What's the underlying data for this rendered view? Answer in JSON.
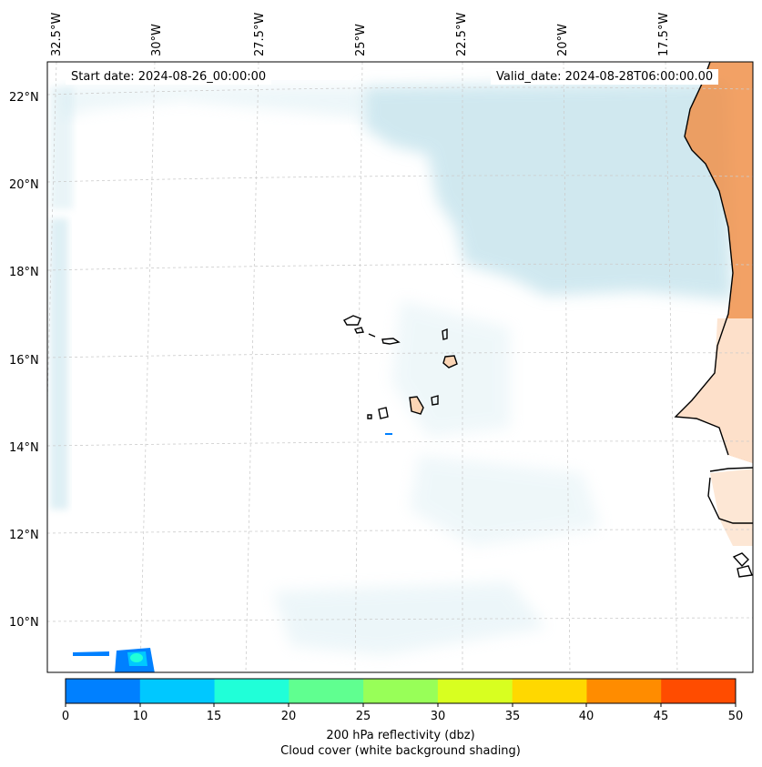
{
  "map": {
    "start_date": "Start date: 2024-08-26_00:00:00",
    "valid_date": "Valid_date: 2024-08-28T06:00:00.00",
    "lon_labels": [
      "32.5°W",
      "30°W",
      "27.5°W",
      "25°W",
      "22.5°W",
      "20°W",
      "17.5°W"
    ],
    "lat_labels": [
      "22°N",
      "20°N",
      "18°N",
      "16°N",
      "14°N",
      "12°N",
      "10°N"
    ],
    "colors": {
      "cloud": "#b7dde8",
      "land_fill": "#f4a262",
      "coast": "#000000",
      "grid": "#cccccc"
    }
  },
  "colorbar": {
    "ticks": [
      "0",
      "10",
      "15",
      "20",
      "25",
      "30",
      "35",
      "40",
      "45",
      "50"
    ],
    "colors": [
      "#0080ff",
      "#00c8ff",
      "#20ffd8",
      "#60ff90",
      "#98ff58",
      "#d8ff20",
      "#ffd800",
      "#ff8c00",
      "#ff4c00"
    ],
    "label": "200 hPa reflectivity (dbz)",
    "sublabel": "Cloud cover (white background shading)"
  }
}
